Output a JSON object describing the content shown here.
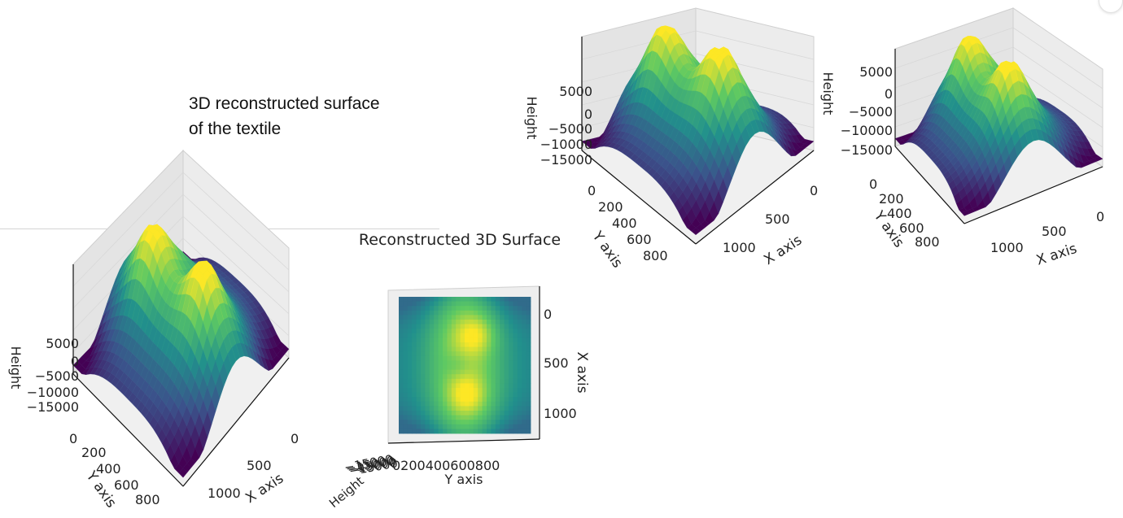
{
  "caption": {
    "line1": "3D reconstructed surface",
    "line2": "of the textile"
  },
  "top_view_title": "Reconstructed 3D Surface",
  "colormap": [
    "#440154",
    "#3b528b",
    "#21908c",
    "#5dc963",
    "#fde725"
  ],
  "chart_data": [
    {
      "type": "surface3d",
      "panel": "view-angled-1",
      "xlabel": "X axis",
      "ylabel": "Y axis",
      "zlabel": "Height",
      "x_ticks": [
        "0",
        "500",
        "1000"
      ],
      "y_ticks": [
        "0",
        "200",
        "400",
        "600",
        "800"
      ],
      "z_ticks": [
        "5000",
        "0",
        "−5000",
        "−10000",
        "−15000"
      ],
      "xlim": [
        0,
        1200
      ],
      "ylim": [
        0,
        900
      ],
      "zlim": [
        -15000,
        7000
      ]
    },
    {
      "type": "surface3d",
      "panel": "view-angled-2",
      "xlabel": "X axis",
      "ylabel": "Y axis",
      "zlabel": "Height",
      "x_ticks": [
        "0",
        "500",
        "1000"
      ],
      "y_ticks": [
        "0",
        "200",
        "400",
        "600",
        "800"
      ],
      "z_ticks": [
        "5000",
        "0",
        "−5000",
        "−10000",
        "−15000"
      ],
      "xlim": [
        0,
        1200
      ],
      "ylim": [
        0,
        900
      ],
      "zlim": [
        -15000,
        7000
      ]
    },
    {
      "type": "surface3d",
      "panel": "view-angled-3",
      "xlabel": "X axis",
      "ylabel": "Y axis",
      "zlabel": "Height",
      "x_ticks": [
        "0",
        "500",
        "1000"
      ],
      "y_ticks": [
        "0",
        "200",
        "400",
        "600",
        "800"
      ],
      "z_ticks": [
        "5000",
        "0",
        "−5000",
        "−10000",
        "−15000"
      ],
      "xlim": [
        0,
        1200
      ],
      "ylim": [
        0,
        900
      ],
      "zlim": [
        -15000,
        7000
      ]
    },
    {
      "type": "surface3d",
      "panel": "view-top",
      "title": "Reconstructed 3D Surface",
      "xlabel": "X axis",
      "ylabel": "Y axis",
      "zlabel": "Height",
      "x_ticks": [
        "0",
        "500",
        "1000"
      ],
      "y_ticks": [
        "0",
        "200",
        "400",
        "600",
        "800"
      ],
      "z_ticks_overlap": "−15000",
      "xlim": [
        0,
        1200
      ],
      "ylim": [
        0,
        900
      ]
    }
  ]
}
